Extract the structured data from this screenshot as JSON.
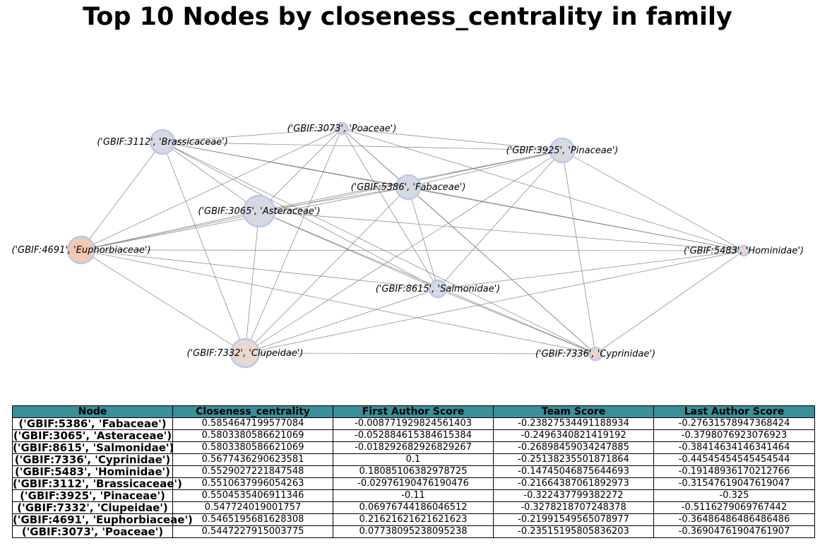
{
  "title": "Top 10 Nodes by closeness_centrality in family",
  "graph": {
    "nodes": [
      {
        "id": "n5386",
        "label": "('GBIF:5386', 'Fabaceae')",
        "fill": "#d6dae0",
        "stroke": "#b6c9ef"
      },
      {
        "id": "n3065",
        "label": "('GBIF:3065', 'Asteraceae')",
        "fill": "#d6dae0",
        "stroke": "#b6c9ef"
      },
      {
        "id": "n8615",
        "label": "('GBIF:8615', 'Salmonidae')",
        "fill": "#d6dae0",
        "stroke": "#b6c9ef"
      },
      {
        "id": "n7336",
        "label": "('GBIF:7336', 'Cyprinidae')",
        "fill": "#ecd3c8",
        "stroke": "#b6c9ef"
      },
      {
        "id": "n5483",
        "label": "('GBIF:5483', 'Hominidae')",
        "fill": "#ecd3c8",
        "stroke": "#b6c9ef"
      },
      {
        "id": "n3112",
        "label": "('GBIF:3112', 'Brassicaceae')",
        "fill": "#d6dae0",
        "stroke": "#b6c9ef"
      },
      {
        "id": "n3925",
        "label": "('GBIF:3925', 'Pinaceae')",
        "fill": "#d6dae0",
        "stroke": "#b6c9ef"
      },
      {
        "id": "n7332",
        "label": "('GBIF:7332', 'Clupeidae')",
        "fill": "#e9d8d0",
        "stroke": "#b6c9ef"
      },
      {
        "id": "n4691",
        "label": "('GBIF:4691', 'Euphorbiaceae')",
        "fill": "#f3c9b5",
        "stroke": "#b6c9ef"
      },
      {
        "id": "n3073",
        "label": "('GBIF:3073', 'Poaceae')",
        "fill": "#e3d3cd",
        "stroke": "#b6c9ef"
      }
    ],
    "edges": [
      [
        "n3112",
        "n3073"
      ],
      [
        "n3112",
        "n3925"
      ],
      [
        "n3112",
        "n5386"
      ],
      [
        "n3112",
        "n5483"
      ],
      [
        "n3112",
        "n8615"
      ],
      [
        "n3112",
        "n7336"
      ],
      [
        "n3112",
        "n7332"
      ],
      [
        "n3112",
        "n4691"
      ],
      [
        "n3112",
        "n3065"
      ],
      [
        "n3073",
        "n3925"
      ],
      [
        "n3073",
        "n5386"
      ],
      [
        "n3073",
        "n3065"
      ],
      [
        "n3073",
        "n8615"
      ],
      [
        "n3073",
        "n7332"
      ],
      [
        "n3073",
        "n7336"
      ],
      [
        "n3073",
        "n4691"
      ],
      [
        "n3073",
        "n5483"
      ],
      [
        "n3925",
        "n5386"
      ],
      [
        "n3925",
        "n3065"
      ],
      [
        "n3925",
        "n4691"
      ],
      [
        "n3925",
        "n8615"
      ],
      [
        "n3925",
        "n7332"
      ],
      [
        "n3925",
        "n7336"
      ],
      [
        "n3925",
        "n5483"
      ],
      [
        "n5386",
        "n3065"
      ],
      [
        "n5386",
        "n4691"
      ],
      [
        "n5386",
        "n5483"
      ],
      [
        "n5386",
        "n8615"
      ],
      [
        "n5386",
        "n7332"
      ],
      [
        "n5386",
        "n7336"
      ],
      [
        "n3065",
        "n4691"
      ],
      [
        "n3065",
        "n5483"
      ],
      [
        "n3065",
        "n8615"
      ],
      [
        "n3065",
        "n7332"
      ],
      [
        "n3065",
        "n7336"
      ],
      [
        "n4691",
        "n5483"
      ],
      [
        "n4691",
        "n8615"
      ],
      [
        "n4691",
        "n7332"
      ],
      [
        "n4691",
        "n7336"
      ],
      [
        "n5483",
        "n8615"
      ],
      [
        "n5483",
        "n7332"
      ],
      [
        "n5483",
        "n7336"
      ],
      [
        "n8615",
        "n7332"
      ],
      [
        "n8615",
        "n7336"
      ],
      [
        "n7332",
        "n7336"
      ]
    ],
    "edge_color": "#808080"
  },
  "table": {
    "header_color": "#3a8f98",
    "columns": [
      "Node",
      "Closeness_centrality",
      "First Author Score",
      "Team Score",
      "Last Author Score"
    ],
    "rows": [
      [
        "('GBIF:5386', 'Fabaceae')",
        "0.5854647199577084",
        "-0.008771929824561403",
        "-0.23827534491188934",
        "-0.27631578947368424"
      ],
      [
        "('GBIF:3065', 'Asteraceae')",
        "0.5803380586621069",
        "-0.052884615384615384",
        "-0.2496340821419192",
        "-0.3798076923076923"
      ],
      [
        "('GBIF:8615', 'Salmonidae')",
        "0.5803380586621069",
        "-0.018292682926829267",
        "-0.26898459034247885",
        "-0.38414634146341464"
      ],
      [
        "('GBIF:7336', 'Cyprinidae')",
        "0.5677436290623581",
        "0.1",
        "-0.25138235501871864",
        "-0.44545454545454544"
      ],
      [
        "('GBIF:5483', 'Hominidae')",
        "0.5529027221847548",
        "0.18085106382978725",
        "-0.14745046875644693",
        "-0.19148936170212766"
      ],
      [
        "('GBIF:3112', 'Brassicaceae')",
        "0.5510637996054263",
        "-0.02976190476190476",
        "-0.21664387061892973",
        "-0.31547619047619047"
      ],
      [
        "('GBIF:3925', 'Pinaceae')",
        "0.5504535406911346",
        "-0.11",
        "-0.322437799382272",
        "-0.325"
      ],
      [
        "('GBIF:7332', 'Clupeidae')",
        "0.547724019001757",
        "0.06976744186046512",
        "-0.3278218707248378",
        "-0.5116279069767442"
      ],
      [
        "('GBIF:4691', 'Euphorbiaceae')",
        "0.5465195681628308",
        "0.21621621621621623",
        "-0.21991549565078977",
        "-0.36486486486486486"
      ],
      [
        "('GBIF:3073', 'Poaceae')",
        "0.5447227915003775",
        "0.07738095238095238",
        "-0.23515195805836203",
        "-0.36904761904761907"
      ]
    ]
  }
}
